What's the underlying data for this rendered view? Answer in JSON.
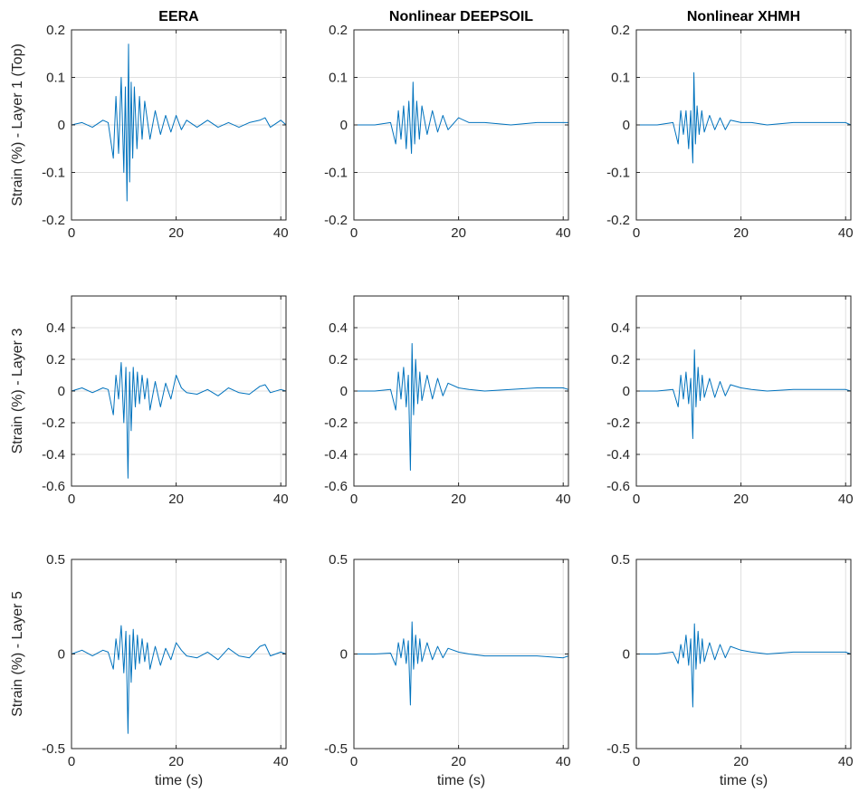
{
  "colors": {
    "line": "#0072BD",
    "grid": "#dfdfdf",
    "axis": "#262626"
  },
  "chart_data": [
    {
      "type": "line",
      "title": "EERA",
      "xlabel": "",
      "ylabel": "Strain (%) - Layer 1 (Top)",
      "xlim": [
        0,
        41
      ],
      "ylim": [
        -0.2,
        0.2
      ],
      "xticks": [
        0,
        20,
        40
      ],
      "xtick_labels": [
        "0",
        "20",
        "40"
      ],
      "yticks": [
        -0.2,
        -0.1,
        0,
        0.1,
        0.2
      ],
      "ytick_labels": [
        "-0.2",
        "-0.1",
        "0",
        "0.1",
        "0.2"
      ],
      "grid": true,
      "series": [
        {
          "x": [
            0,
            2,
            4,
            6,
            7,
            8,
            8.5,
            9,
            9.5,
            10,
            10.3,
            10.6,
            10.9,
            11.1,
            11.4,
            11.7,
            12,
            12.5,
            13,
            13.5,
            14,
            15,
            16,
            17,
            18,
            19,
            20,
            21,
            22,
            24,
            26,
            28,
            30,
            32,
            34,
            36,
            37,
            38,
            40,
            41
          ],
          "y": [
            0,
            0.005,
            -0.005,
            0.01,
            0.005,
            -0.07,
            0.06,
            -0.06,
            0.1,
            -0.1,
            0.08,
            -0.16,
            0.17,
            -0.12,
            0.09,
            -0.07,
            0.08,
            -0.05,
            0.06,
            -0.03,
            0.05,
            -0.03,
            0.03,
            -0.02,
            0.02,
            -0.015,
            0.02,
            -0.01,
            0.01,
            -0.005,
            0.01,
            -0.005,
            0.005,
            -0.005,
            0.005,
            0.01,
            0.015,
            -0.005,
            0.01,
            0
          ]
        }
      ]
    },
    {
      "type": "line",
      "title": "Nonlinear DEEPSOIL",
      "xlabel": "",
      "ylabel": "",
      "xlim": [
        0,
        41
      ],
      "ylim": [
        -0.2,
        0.2
      ],
      "xticks": [
        0,
        20,
        40
      ],
      "xtick_labels": [
        "0",
        "20",
        "40"
      ],
      "yticks": [
        -0.2,
        -0.1,
        0,
        0.1,
        0.2
      ],
      "ytick_labels": [
        "-0.2",
        "-0.1",
        "0",
        "0.1",
        "0.2"
      ],
      "grid": true,
      "series": [
        {
          "x": [
            0,
            4,
            7,
            8,
            8.5,
            9,
            9.5,
            10,
            10.5,
            11,
            11.3,
            11.6,
            12,
            12.5,
            13,
            14,
            15,
            16,
            17,
            18,
            20,
            22,
            25,
            30,
            35,
            40,
            41
          ],
          "y": [
            0,
            0,
            0.005,
            -0.04,
            0.03,
            -0.03,
            0.04,
            -0.05,
            0.05,
            -0.06,
            0.09,
            -0.04,
            0.05,
            -0.03,
            0.04,
            -0.02,
            0.03,
            -0.015,
            0.02,
            -0.01,
            0.015,
            0.005,
            0.005,
            0,
            0.005,
            0.005,
            0.005
          ]
        }
      ]
    },
    {
      "type": "line",
      "title": "Nonlinear XHMH",
      "xlabel": "",
      "ylabel": "",
      "xlim": [
        0,
        41
      ],
      "ylim": [
        -0.2,
        0.2
      ],
      "xticks": [
        0,
        20,
        40
      ],
      "xtick_labels": [
        "0",
        "20",
        "40"
      ],
      "yticks": [
        -0.2,
        -0.1,
        0,
        0.1,
        0.2
      ],
      "ytick_labels": [
        "-0.2",
        "-0.1",
        "0",
        "0.1",
        "0.2"
      ],
      "grid": true,
      "series": [
        {
          "x": [
            0,
            4,
            7,
            8,
            8.5,
            9,
            9.5,
            10,
            10.4,
            10.8,
            11,
            11.3,
            11.6,
            12,
            12.5,
            13,
            14,
            15,
            16,
            17,
            18,
            20,
            22,
            25,
            30,
            35,
            40,
            41
          ],
          "y": [
            0,
            0,
            0.005,
            -0.04,
            0.03,
            -0.02,
            0.03,
            -0.05,
            0.03,
            -0.08,
            0.11,
            -0.04,
            0.04,
            -0.02,
            0.03,
            -0.015,
            0.02,
            -0.01,
            0.015,
            -0.01,
            0.01,
            0.005,
            0.005,
            0,
            0.005,
            0.005,
            0.005,
            0
          ]
        }
      ]
    },
    {
      "type": "line",
      "title": "",
      "xlabel": "",
      "ylabel": "Strain (%) - Layer 3",
      "xlim": [
        0,
        41
      ],
      "ylim": [
        -0.6,
        0.6
      ],
      "xticks": [
        0,
        20,
        40
      ],
      "xtick_labels": [
        "0",
        "20",
        "40"
      ],
      "yticks": [
        -0.6,
        -0.4,
        -0.2,
        0,
        0.2,
        0.4
      ],
      "ytick_labels": [
        "-0.6",
        "-0.4",
        "-0.2",
        "0",
        "0.2",
        "0.4"
      ],
      "grid": true,
      "series": [
        {
          "x": [
            0,
            2,
            4,
            6,
            7,
            8,
            8.5,
            9,
            9.5,
            10,
            10.4,
            10.8,
            11.1,
            11.4,
            11.8,
            12.2,
            12.6,
            13,
            13.5,
            14,
            14.5,
            15,
            16,
            17,
            18,
            19,
            20,
            21,
            22,
            24,
            26,
            28,
            30,
            32,
            34,
            36,
            37,
            38,
            40,
            41
          ],
          "y": [
            0,
            0.02,
            -0.01,
            0.02,
            0.01,
            -0.15,
            0.1,
            -0.05,
            0.18,
            -0.2,
            0.15,
            -0.55,
            0.12,
            -0.25,
            0.15,
            -0.1,
            0.12,
            -0.08,
            0.1,
            -0.05,
            0.08,
            -0.12,
            0.06,
            -0.1,
            0.05,
            -0.05,
            0.1,
            0.02,
            -0.01,
            -0.02,
            0.01,
            -0.03,
            0.02,
            -0.01,
            -0.02,
            0.03,
            0.04,
            -0.01,
            0.01,
            0
          ]
        }
      ]
    },
    {
      "type": "line",
      "title": "",
      "xlabel": "",
      "ylabel": "",
      "xlim": [
        0,
        41
      ],
      "ylim": [
        -0.6,
        0.6
      ],
      "xticks": [
        0,
        20,
        40
      ],
      "xtick_labels": [
        "0",
        "20",
        "40"
      ],
      "yticks": [
        -0.6,
        -0.4,
        -0.2,
        0,
        0.2,
        0.4
      ],
      "ytick_labels": [
        "-0.6",
        "-0.4",
        "-0.2",
        "0",
        "0.2",
        "0.4"
      ],
      "grid": true,
      "series": [
        {
          "x": [
            0,
            4,
            7,
            8,
            8.5,
            9,
            9.5,
            10,
            10.4,
            10.8,
            11.1,
            11.4,
            11.8,
            12.2,
            12.6,
            13,
            14,
            15,
            16,
            17,
            18,
            20,
            22,
            25,
            30,
            35,
            40,
            41
          ],
          "y": [
            0,
            0,
            0.01,
            -0.12,
            0.12,
            -0.05,
            0.15,
            -0.1,
            0.1,
            -0.5,
            0.3,
            -0.15,
            0.2,
            -0.08,
            0.12,
            -0.06,
            0.1,
            -0.05,
            0.08,
            -0.03,
            0.05,
            0.02,
            0.01,
            0,
            0.01,
            0.02,
            0.02,
            0.01
          ]
        }
      ]
    },
    {
      "type": "line",
      "title": "",
      "xlabel": "",
      "ylabel": "",
      "xlim": [
        0,
        41
      ],
      "ylim": [
        -0.6,
        0.6
      ],
      "xticks": [
        0,
        20,
        40
      ],
      "xtick_labels": [
        "0",
        "20",
        "40"
      ],
      "yticks": [
        -0.6,
        -0.4,
        -0.2,
        0,
        0.2,
        0.4
      ],
      "ytick_labels": [
        "-0.6",
        "-0.4",
        "-0.2",
        "0",
        "0.2",
        "0.4"
      ],
      "grid": true,
      "series": [
        {
          "x": [
            0,
            4,
            7,
            8,
            8.5,
            9,
            9.5,
            10,
            10.4,
            10.8,
            11.1,
            11.4,
            11.8,
            12.2,
            12.6,
            13,
            14,
            15,
            16,
            17,
            18,
            20,
            22,
            25,
            30,
            35,
            40,
            41
          ],
          "y": [
            0,
            0,
            0.01,
            -0.1,
            0.1,
            -0.05,
            0.12,
            -0.08,
            0.08,
            -0.3,
            0.26,
            -0.1,
            0.15,
            -0.06,
            0.1,
            -0.04,
            0.08,
            -0.04,
            0.06,
            -0.03,
            0.04,
            0.02,
            0.01,
            0,
            0.01,
            0.01,
            0.01,
            0
          ]
        }
      ]
    },
    {
      "type": "line",
      "title": "",
      "xlabel": "time (s)",
      "ylabel": "Strain (%) - Layer 5",
      "xlim": [
        0,
        41
      ],
      "ylim": [
        -0.5,
        0.5
      ],
      "xticks": [
        0,
        20,
        40
      ],
      "xtick_labels": [
        "0",
        "20",
        "40"
      ],
      "yticks": [
        -0.5,
        0,
        0.5
      ],
      "ytick_labels": [
        "-0.5",
        "0",
        "0.5"
      ],
      "grid": true,
      "series": [
        {
          "x": [
            0,
            2,
            4,
            6,
            7,
            8,
            8.5,
            9,
            9.5,
            10,
            10.4,
            10.8,
            11.1,
            11.4,
            11.8,
            12.2,
            12.6,
            13,
            13.5,
            14,
            14.5,
            15,
            16,
            17,
            18,
            19,
            20,
            21,
            22,
            24,
            26,
            28,
            30,
            32,
            34,
            36,
            37,
            38,
            40,
            41
          ],
          "y": [
            0,
            0.02,
            -0.01,
            0.02,
            0.01,
            -0.08,
            0.08,
            -0.03,
            0.15,
            -0.1,
            0.12,
            -0.42,
            0.1,
            -0.15,
            0.13,
            -0.08,
            0.1,
            -0.05,
            0.08,
            -0.04,
            0.06,
            -0.08,
            0.04,
            -0.06,
            0.03,
            -0.03,
            0.06,
            0.02,
            -0.01,
            -0.02,
            0.01,
            -0.03,
            0.03,
            -0.01,
            -0.02,
            0.04,
            0.05,
            -0.01,
            0.01,
            0
          ]
        }
      ]
    },
    {
      "type": "line",
      "title": "",
      "xlabel": "time (s)",
      "ylabel": "",
      "xlim": [
        0,
        41
      ],
      "ylim": [
        -0.5,
        0.5
      ],
      "xticks": [
        0,
        20,
        40
      ],
      "xtick_labels": [
        "0",
        "20",
        "40"
      ],
      "yticks": [
        -0.5,
        0,
        0.5
      ],
      "ytick_labels": [
        "-0.5",
        "0",
        "0.5"
      ],
      "grid": true,
      "series": [
        {
          "x": [
            0,
            4,
            7,
            8,
            8.5,
            9,
            9.5,
            10,
            10.4,
            10.8,
            11.1,
            11.4,
            11.8,
            12.2,
            12.6,
            13,
            14,
            15,
            16,
            17,
            18,
            20,
            22,
            25,
            30,
            35,
            40,
            41
          ],
          "y": [
            0,
            0,
            0.005,
            -0.06,
            0.06,
            -0.02,
            0.08,
            -0.05,
            0.07,
            -0.27,
            0.17,
            -0.08,
            0.1,
            -0.05,
            0.08,
            -0.04,
            0.06,
            -0.03,
            0.04,
            -0.02,
            0.03,
            0.01,
            0,
            -0.01,
            -0.01,
            -0.01,
            -0.02,
            -0.01
          ]
        }
      ]
    },
    {
      "type": "line",
      "title": "",
      "xlabel": "time (s)",
      "ylabel": "",
      "xlim": [
        0,
        41
      ],
      "ylim": [
        -0.5,
        0.5
      ],
      "xticks": [
        0,
        20,
        40
      ],
      "xtick_labels": [
        "0",
        "20",
        "40"
      ],
      "yticks": [
        -0.5,
        0,
        0.5
      ],
      "ytick_labels": [
        "-0.5",
        "0",
        "0.5"
      ],
      "grid": true,
      "series": [
        {
          "x": [
            0,
            4,
            7,
            8,
            8.5,
            9,
            9.5,
            10,
            10.4,
            10.8,
            11.1,
            11.4,
            11.8,
            12.2,
            12.6,
            13,
            14,
            15,
            16,
            17,
            18,
            20,
            22,
            25,
            30,
            35,
            40,
            41
          ],
          "y": [
            0,
            0,
            0.01,
            -0.05,
            0.05,
            -0.02,
            0.1,
            -0.06,
            0.08,
            -0.28,
            0.16,
            -0.08,
            0.12,
            -0.05,
            0.08,
            -0.04,
            0.06,
            -0.03,
            0.05,
            -0.02,
            0.04,
            0.02,
            0.01,
            0,
            0.01,
            0.01,
            0.01,
            0
          ]
        }
      ]
    }
  ]
}
